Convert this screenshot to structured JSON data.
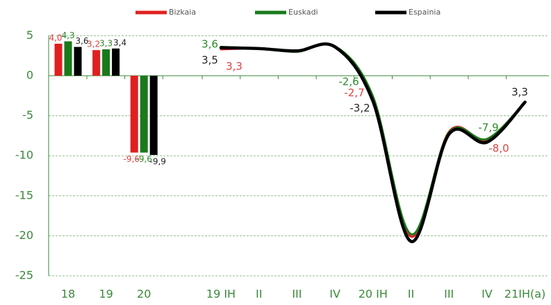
{
  "chart_data": {
    "type": "combo",
    "categories": [
      "18",
      "19",
      "20"
    ],
    "line_categories": [
      "19 IH",
      "II",
      "III",
      "IV",
      "20 IH",
      "II",
      "III",
      "IV",
      "21IH(a)"
    ],
    "series": [
      {
        "name": "Bizkaia",
        "color": "#e02020",
        "values": [
          4.0,
          3.2,
          -9.6
        ],
        "value_labels": [
          "4,0",
          "3,2",
          "-9,6"
        ],
        "line_values": [
          3.3,
          3.4,
          3.1,
          3.6,
          -2.7,
          -20.1,
          -7.0,
          -8.0,
          -3.3
        ],
        "line_value_labels": [
          "3,3",
          null,
          null,
          null,
          "-2,7",
          null,
          null,
          "-8,0",
          null
        ]
      },
      {
        "name": "Euskadi",
        "color": "#1a7a1a",
        "values": [
          4.3,
          3.3,
          -9.6
        ],
        "value_labels": [
          "4,3",
          "3,3",
          "-9,6"
        ],
        "line_values": [
          3.6,
          3.4,
          3.0,
          3.7,
          -2.6,
          -19.8,
          -7.1,
          -7.9,
          -3.3
        ],
        "line_value_labels": [
          "3,6",
          null,
          null,
          null,
          "-2,6",
          null,
          null,
          "-7,9",
          null
        ]
      },
      {
        "name": "Espainia",
        "color": "#000000",
        "values": [
          3.6,
          3.4,
          -9.9
        ],
        "value_labels": [
          "3,6",
          "3,4",
          "-9,9"
        ],
        "line_values": [
          3.5,
          3.4,
          3.1,
          3.6,
          -3.2,
          -20.7,
          -7.3,
          -8.3,
          -3.3
        ],
        "line_value_labels": [
          "3,5",
          null,
          null,
          null,
          "-3,2",
          null,
          null,
          null,
          null
        ]
      }
    ],
    "annotations": [
      {
        "text": "3,3"
      }
    ],
    "ylim": [
      -25,
      5
    ],
    "yticks": [
      -25,
      -20,
      -15,
      -10,
      -5,
      0,
      5
    ],
    "grid": true
  }
}
